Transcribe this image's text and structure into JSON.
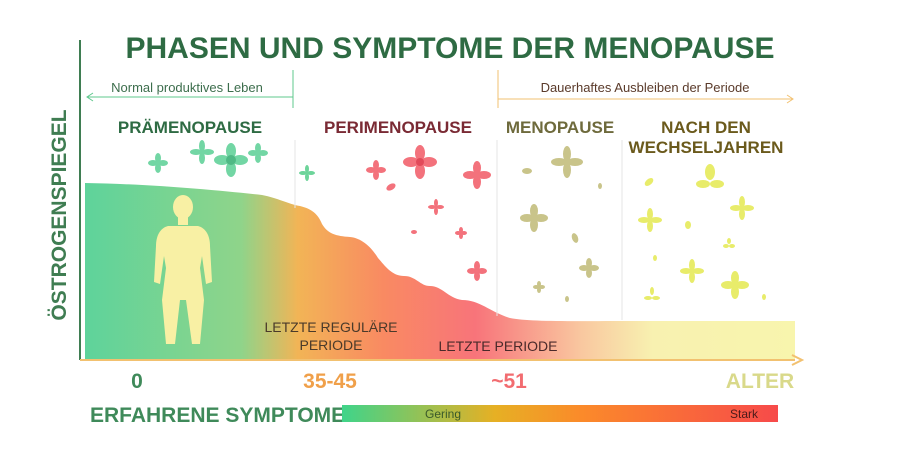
{
  "title": "PHASEN UND SYMPTOME DER MENOPAUSE",
  "y_axis_label": "ÖSTROGENSPIEGEL",
  "brackets": {
    "left": "Normal produktives Leben",
    "right": "Dauerhaftes Ausbleiben der Periode"
  },
  "phases": [
    {
      "label": "PRÄMENOPAUSE"
    },
    {
      "label": "PERIMENOPAUSE"
    },
    {
      "label": "MENOPAUSE"
    },
    {
      "label_line1": "NACH DEN",
      "label_line2": "WECHSELJAHREN"
    }
  ],
  "events": {
    "last_regular_line1": "LETZTE REGULÄRE",
    "last_regular_line2": "PERIODE",
    "last_period": "LETZTE PERIODE"
  },
  "x_ticks": [
    "0",
    "35-45",
    "~51",
    "ALTER"
  ],
  "symptoms": {
    "label": "ERFAHRENE SYMPTOME",
    "low": "Gering",
    "high": "Stark"
  },
  "colors": {
    "title": "#2e6b43",
    "green": "#6dd49a",
    "orange": "#f5a04a",
    "red": "#f76d78",
    "cream": "#f8f4a8",
    "menopause_text": "#6e6a3c",
    "perimenopause_text": "#7a2a34",
    "post_text": "#6b5a1c"
  }
}
